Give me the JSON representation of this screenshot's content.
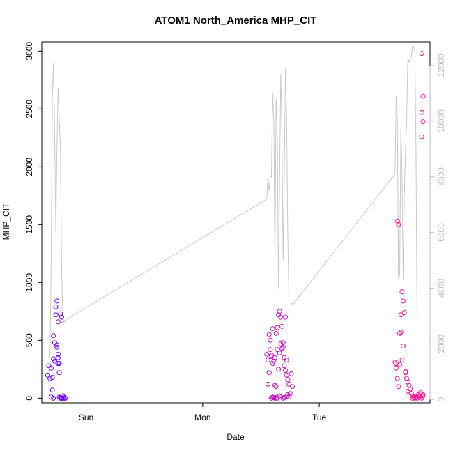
{
  "chart_data": {
    "type": "scatter",
    "title": "ATOM1 North_America MHP_CIT",
    "xlabel": "Date",
    "ylabel": "MHP_CIT",
    "x_unit": "days",
    "xlim": [
      -0.38,
      2.95
    ],
    "ylim": [
      -40,
      3080
    ],
    "y2lim": [
      -120,
      12850
    ],
    "x_ticks": [
      {
        "value": 0,
        "label": "Sun"
      },
      {
        "value": 1,
        "label": "Mon"
      },
      {
        "value": 2,
        "label": "Tue"
      }
    ],
    "y_ticks": [
      0,
      500,
      1000,
      1500,
      2000,
      2500,
      3000
    ],
    "y2_ticks": [
      0,
      2000,
      4000,
      6000,
      8000,
      10000,
      12000
    ],
    "colors": {
      "start": "#6a00ff",
      "end": "#ff1493",
      "line": "#c8c8c8",
      "right_axis": "#bdbdbd"
    },
    "line_series": {
      "axis": "right",
      "x": [
        -0.31,
        -0.3,
        -0.29,
        -0.28,
        -0.27,
        -0.26,
        -0.25,
        -0.24,
        -0.23,
        -0.22,
        -0.21,
        -0.2,
        -0.19,
        -0.18,
        -0.22,
        1.55,
        1.56,
        1.57,
        1.58,
        1.59,
        1.6,
        1.61,
        1.62,
        1.63,
        1.64,
        1.65,
        1.66,
        1.67,
        1.68,
        1.69,
        1.7,
        1.71,
        1.72,
        1.73,
        1.74,
        1.75,
        1.76,
        1.77,
        1.78,
        1.79,
        2.65,
        2.66,
        2.67,
        2.68,
        2.69,
        2.7,
        2.71,
        2.72,
        2.73,
        2.74,
        2.75,
        2.76,
        2.77,
        2.78,
        2.79,
        2.8,
        2.81,
        2.82,
        2.83,
        2.84
      ],
      "y": [
        1500,
        5000,
        10800,
        12100,
        9600,
        6000,
        9000,
        11200,
        10000,
        9000,
        4700,
        3000,
        2800,
        2800,
        2750,
        7200,
        8000,
        7500,
        8000,
        8000,
        11000,
        10000,
        5000,
        10800,
        9500,
        4000,
        8000,
        11700,
        9500,
        5000,
        8000,
        11900,
        10000,
        6000,
        3500,
        3500,
        3500,
        3400,
        3400,
        3500,
        8100,
        10900,
        10000,
        4300,
        4500,
        9700,
        8200,
        4300,
        7400,
        9000,
        10000,
        12300,
        12100,
        12300,
        12300,
        12700,
        12700,
        12500,
        9000,
        2100
      ]
    },
    "scatter_series": {
      "axis": "left",
      "x": [
        -0.33,
        -0.32,
        -0.31,
        -0.3,
        -0.29,
        -0.28,
        -0.27,
        -0.26,
        -0.26,
        -0.25,
        -0.25,
        -0.24,
        -0.24,
        -0.23,
        -0.23,
        -0.22,
        -0.22,
        -0.21,
        -0.2,
        -0.2,
        -0.19,
        -0.19,
        -0.18,
        -0.18,
        -0.3,
        -0.29,
        -0.28,
        -0.27,
        -0.25,
        -0.24,
        -0.23,
        -0.21,
        -0.22,
        -0.24,
        -0.21,
        -0.28,
        1.56,
        1.57,
        1.58,
        1.58,
        1.59,
        1.6,
        1.61,
        1.62,
        1.63,
        1.64,
        1.65,
        1.66,
        1.67,
        1.68,
        1.69,
        1.7,
        1.71,
        1.72,
        1.73,
        1.74,
        1.75,
        1.76,
        1.77,
        1.56,
        1.57,
        1.6,
        1.62,
        1.63,
        1.64,
        1.66,
        1.67,
        1.69,
        1.7,
        1.72,
        1.73,
        1.74,
        1.62,
        1.64,
        1.66,
        1.69,
        1.71,
        1.6,
        1.59,
        1.61,
        1.65,
        1.68,
        1.7,
        1.72,
        1.58,
        1.63,
        1.67,
        1.55,
        2.65,
        2.66,
        2.67,
        2.68,
        2.69,
        2.7,
        2.71,
        2.72,
        2.73,
        2.74,
        2.75,
        2.76,
        2.77,
        2.78,
        2.79,
        2.8,
        2.81,
        2.82,
        2.83,
        2.84,
        2.85,
        2.86,
        2.87,
        2.88,
        2.89,
        2.66,
        2.68,
        2.7,
        2.72,
        2.74,
        2.76,
        2.8,
        2.82,
        2.84,
        2.86,
        2.88,
        2.89,
        2.88,
        2.89,
        2.88,
        2.89,
        2.88,
        2.67,
        2.69,
        2.71
      ],
      "y": [
        200,
        280,
        170,
        10,
        70,
        340,
        480,
        720,
        790,
        840,
        460,
        380,
        300,
        220,
        10,
        5,
        730,
        700,
        0,
        20,
        0,
        10,
        0,
        0,
        260,
        180,
        540,
        320,
        440,
        350,
        300,
        0,
        0,
        660,
        0,
        0,
        120,
        220,
        420,
        500,
        370,
        300,
        320,
        110,
        560,
        610,
        720,
        750,
        700,
        620,
        480,
        350,
        240,
        200,
        160,
        120,
        40,
        210,
        100,
        330,
        550,
        10,
        0,
        5,
        0,
        20,
        10,
        0,
        5,
        15,
        30,
        10,
        350,
        420,
        390,
        440,
        700,
        600,
        0,
        5,
        250,
        430,
        280,
        330,
        360,
        100,
        470,
        380,
        310,
        300,
        1530,
        1500,
        560,
        720,
        920,
        840,
        740,
        230,
        170,
        140,
        110,
        80,
        40,
        20,
        10,
        5,
        10,
        10,
        30,
        20,
        50,
        0,
        20,
        260,
        100,
        570,
        450,
        220,
        60,
        0,
        0,
        0,
        10,
        20,
        30,
        2980,
        2610,
        2470,
        2390,
        2260,
        170,
        290,
        330
      ]
    }
  }
}
